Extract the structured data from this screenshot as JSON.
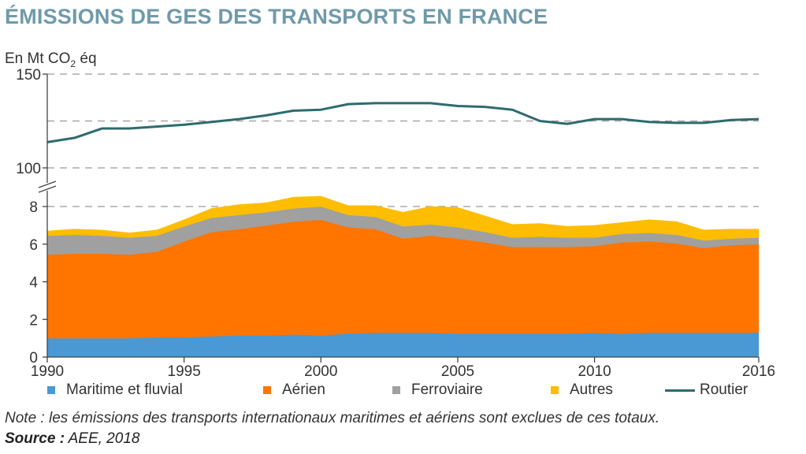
{
  "title": "ÉMISSIONS DE GES DES TRANSPORTS EN FRANCE",
  "note": "Note : les émissions des transports internationaux maritimes et aériens sont exclues de ces totaux.",
  "source_label": "Source :",
  "source_value": " AEE, 2018",
  "chart_data": {
    "type": "area",
    "title": "ÉMISSIONS DE GES DES TRANSPORTS EN FRANCE",
    "ylabel": "En Mt CO2 éq",
    "ylabel_main": "En Mt CO",
    "ylabel_sub": "2",
    "ylabel_suffix": " éq",
    "xlabel": "",
    "x": [
      1990,
      1991,
      1992,
      1993,
      1994,
      1995,
      1996,
      1997,
      1998,
      1999,
      2000,
      2001,
      2002,
      2003,
      2004,
      2005,
      2006,
      2007,
      2008,
      2009,
      2010,
      2011,
      2012,
      2013,
      2014,
      2015,
      2016
    ],
    "x_ticks": [
      1990,
      1995,
      2000,
      2005,
      2010,
      2016
    ],
    "broken_axis": true,
    "upper_panel": {
      "type": "line",
      "ylim": [
        100,
        150
      ],
      "y_ticks": [
        100,
        150
      ],
      "gridlines": [
        100,
        125,
        150
      ],
      "series": [
        {
          "name": "Routier",
          "color": "#2e6b6e",
          "values": [
            113.7,
            116,
            121,
            121,
            122,
            123,
            124.5,
            126,
            128,
            130.5,
            131,
            134,
            134.5,
            134.5,
            134.5,
            133,
            132.5,
            131,
            125,
            123.5,
            126,
            126,
            124.5,
            124,
            124,
            125.5,
            126
          ]
        }
      ]
    },
    "lower_panel": {
      "type": "stacked_area",
      "ylim": [
        0,
        8
      ],
      "y_ticks": [
        0,
        2,
        4,
        6,
        8
      ],
      "gridlines": [
        8
      ],
      "series": [
        {
          "name": "Maritime et fluvial",
          "color": "#4a98d4",
          "values": [
            1.0,
            1.0,
            1.0,
            1.0,
            1.05,
            1.05,
            1.1,
            1.15,
            1.15,
            1.2,
            1.15,
            1.25,
            1.3,
            1.3,
            1.3,
            1.25,
            1.25,
            1.25,
            1.25,
            1.25,
            1.3,
            1.25,
            1.3,
            1.3,
            1.3,
            1.3,
            1.3
          ]
        },
        {
          "name": "Aérien",
          "color": "#ff7500",
          "values": [
            4.45,
            4.5,
            4.5,
            4.45,
            4.55,
            5.1,
            5.55,
            5.65,
            5.85,
            6.0,
            6.15,
            5.65,
            5.5,
            5.0,
            5.15,
            5.05,
            4.85,
            4.6,
            4.6,
            4.6,
            4.6,
            4.85,
            4.85,
            4.75,
            4.5,
            4.65,
            4.7
          ]
        },
        {
          "name": "Ferroviaire",
          "color": "#a0a0a0",
          "values": [
            1.0,
            1.0,
            0.95,
            0.9,
            0.85,
            0.8,
            0.75,
            0.75,
            0.7,
            0.7,
            0.7,
            0.65,
            0.65,
            0.65,
            0.6,
            0.6,
            0.55,
            0.5,
            0.55,
            0.5,
            0.45,
            0.45,
            0.45,
            0.45,
            0.4,
            0.35,
            0.35
          ]
        },
        {
          "name": "Autres",
          "color": "#ffbd00",
          "values": [
            0.25,
            0.3,
            0.3,
            0.25,
            0.3,
            0.35,
            0.5,
            0.55,
            0.5,
            0.6,
            0.55,
            0.5,
            0.6,
            0.75,
            0.95,
            1.05,
            0.85,
            0.7,
            0.7,
            0.6,
            0.65,
            0.6,
            0.7,
            0.7,
            0.55,
            0.5,
            0.45
          ]
        }
      ]
    },
    "legend": {
      "position": "bottom",
      "entries": [
        {
          "label": "Maritime et fluvial",
          "color": "#4a98d4",
          "kind": "square"
        },
        {
          "label": "Aérien",
          "color": "#ff7500",
          "kind": "square"
        },
        {
          "label": "Ferroviaire",
          "color": "#a0a0a0",
          "kind": "square"
        },
        {
          "label": "Autres",
          "color": "#ffbd00",
          "kind": "square"
        },
        {
          "label": "Routier",
          "color": "#2e6b6e",
          "kind": "line"
        }
      ]
    }
  }
}
